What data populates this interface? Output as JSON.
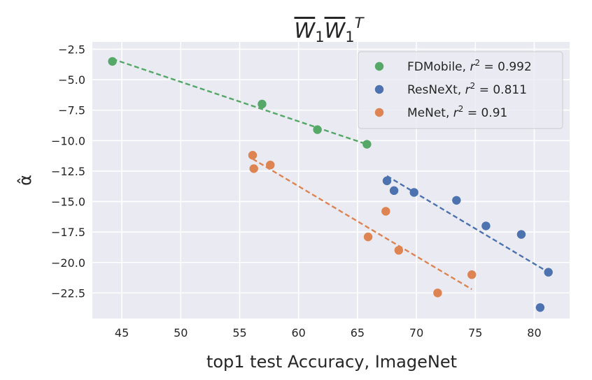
{
  "chart_data": {
    "type": "scatter",
    "title": "W̄₁W̄₁ᵀ",
    "title_parts": {
      "base": "W",
      "sub": "1",
      "sup": "T"
    },
    "xlabel": "top1 test Accuracy, ImageNet",
    "ylabel": "α̂",
    "xlim": [
      42.5,
      83.0
    ],
    "ylim": [
      -24.6,
      -1.9
    ],
    "xticks": [
      45,
      50,
      55,
      60,
      65,
      70,
      75,
      80
    ],
    "yticks": [
      -2.5,
      -5.0,
      -7.5,
      -10.0,
      -12.5,
      -15.0,
      -17.5,
      -20.0,
      -22.5
    ],
    "xtick_labels": [
      "45",
      "50",
      "55",
      "60",
      "65",
      "70",
      "75",
      "80"
    ],
    "ytick_labels": [
      "−2.5",
      "−5.0",
      "−7.5",
      "−10.0",
      "−12.5",
      "−15.0",
      "−17.5",
      "−20.0",
      "−22.5"
    ],
    "grid": true,
    "background": "#eaeaf2",
    "legend_position": "top-right",
    "series": [
      {
        "name": "FDMobile",
        "r2_prefix": "FDMobile, ",
        "r2_value": "0.992",
        "color": "#55a868",
        "x": [
          44.2,
          56.9,
          61.6,
          65.8
        ],
        "y": [
          -3.5,
          -7.0,
          -9.1,
          -10.3
        ],
        "fit": {
          "x": [
            44.2,
            65.8
          ],
          "y": [
            -3.3,
            -10.3
          ]
        }
      },
      {
        "name": "ResNeXt",
        "r2_prefix": "ResNeXt, ",
        "r2_value": "0.811",
        "color": "#4c72b0",
        "x": [
          67.5,
          68.1,
          69.8,
          73.4,
          75.9,
          78.9,
          80.5,
          81.2
        ],
        "y": [
          -13.3,
          -14.1,
          -14.25,
          -14.9,
          -17.0,
          -17.7,
          -23.7,
          -20.8
        ],
        "fit": {
          "x": [
            67.5,
            81.2
          ],
          "y": [
            -12.9,
            -20.8
          ]
        }
      },
      {
        "name": "MeNet",
        "r2_prefix": "MeNet, ",
        "r2_value": "0.91",
        "color": "#dd8452",
        "x": [
          56.1,
          56.2,
          57.6,
          65.9,
          67.4,
          68.5,
          71.8,
          74.7
        ],
        "y": [
          -11.2,
          -12.3,
          -12.0,
          -17.9,
          -15.8,
          -19.0,
          -22.5,
          -21.0
        ],
        "fit": {
          "x": [
            56.1,
            74.7
          ],
          "y": [
            -11.5,
            -22.2
          ]
        }
      }
    ]
  }
}
